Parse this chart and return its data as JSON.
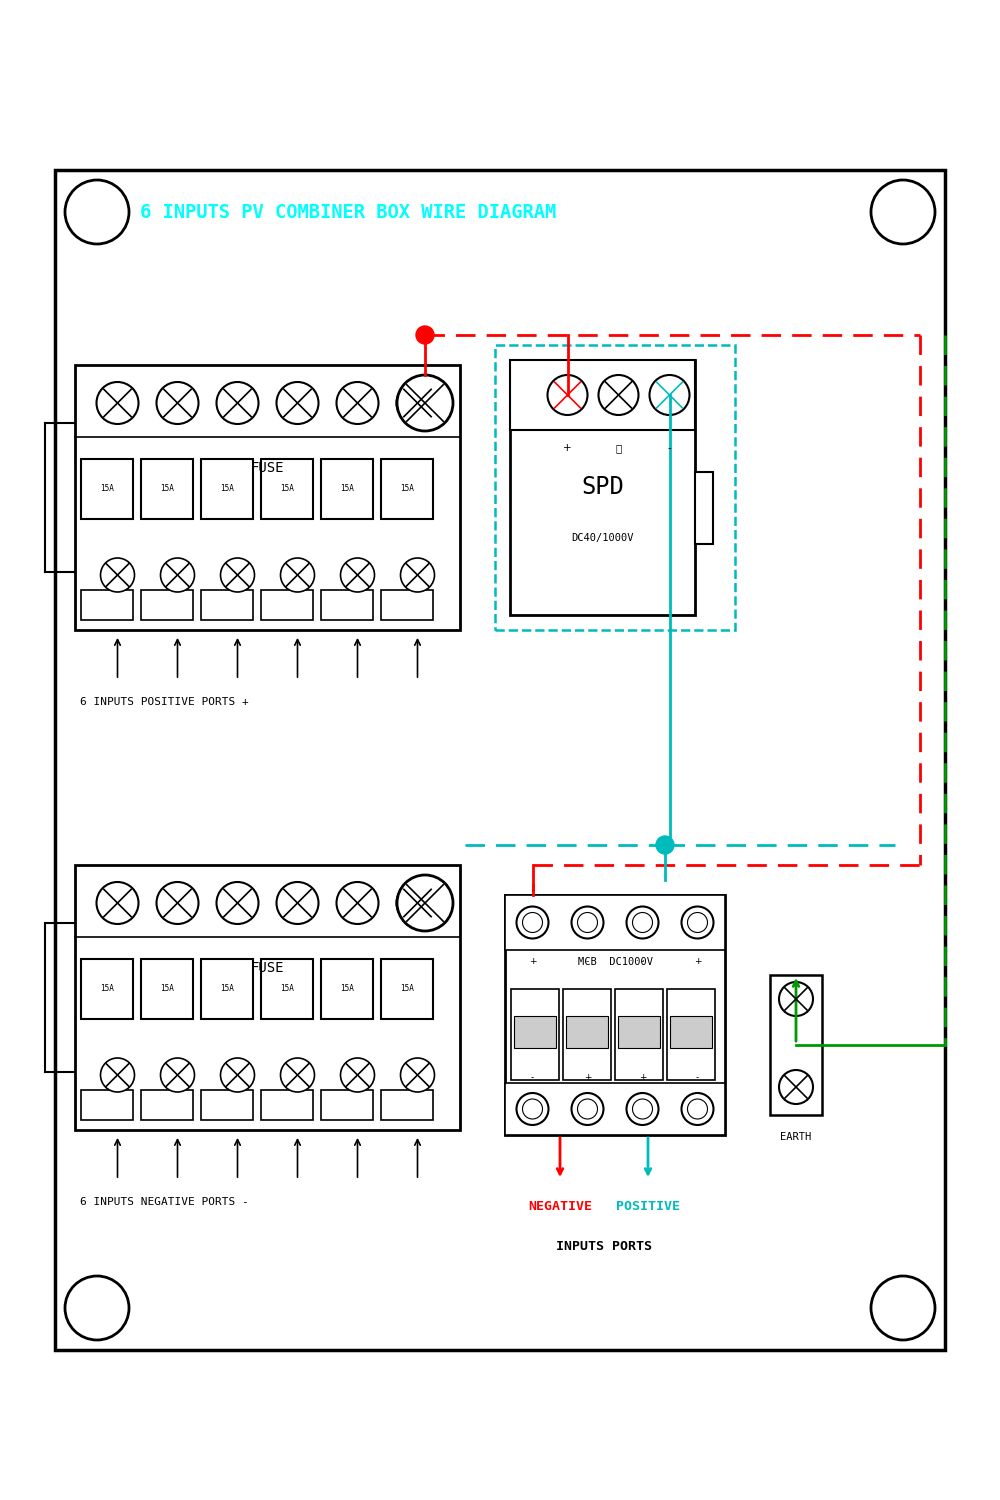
{
  "title": "6 INPUTS PV COMBINER BOX WIRE DIAGRAM",
  "title_color": "#00FFFF",
  "bg_color": "#FFFFFF",
  "border_color": "#000000",
  "line_color": "#000000",
  "red_color": "#FF0000",
  "cyan_color": "#00BBBB",
  "green_color": "#009900",
  "fuse_rating": "15A",
  "pos_ports_label": "6 INPUTS POSITIVE PORTS +",
  "neg_ports_label": "6 INPUTS NEGATIVE PORTS -",
  "neg_output_label": "NEGATIVE",
  "pos_output_label": "POSITIVE",
  "inputs_ports_label": "INPUTS PORTS",
  "earth_label": "EARTH",
  "spd_text": "SPD",
  "spd_sub": "DC40/1000V",
  "mcb_text": "MCB  DC1000V"
}
